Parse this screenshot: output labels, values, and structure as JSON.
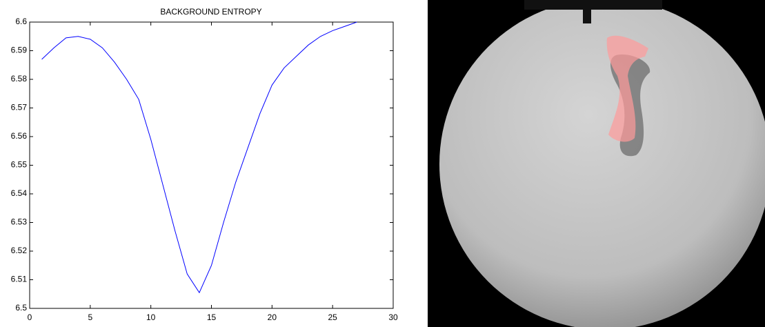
{
  "chart_data": {
    "type": "line",
    "title": "BACKGROUND ENTROPY",
    "x": [
      1,
      2,
      3,
      4,
      5,
      6,
      7,
      8,
      9,
      10,
      11,
      12,
      13,
      14,
      15,
      16,
      17,
      18,
      19,
      20,
      21,
      22,
      23,
      24,
      25,
      26,
      27
    ],
    "series": [
      {
        "color": "#0000ff",
        "values": [
          6.587,
          6.591,
          6.5945,
          6.595,
          6.594,
          6.591,
          6.586,
          6.58,
          6.573,
          6.559,
          6.543,
          6.527,
          6.512,
          6.5055,
          6.515,
          6.53,
          6.544,
          6.556,
          6.568,
          6.578,
          6.584,
          6.588,
          6.592,
          6.595,
          6.597,
          6.5985,
          6.6
        ]
      }
    ],
    "xlim": [
      0,
      30
    ],
    "xticks": [
      0,
      5,
      10,
      15,
      20,
      25,
      30
    ],
    "ylim": [
      6.5,
      6.6
    ],
    "yticks": [
      6.5,
      6.51,
      6.52,
      6.53,
      6.54,
      6.55,
      6.56,
      6.57,
      6.58,
      6.59,
      6.6
    ],
    "grid": false
  }
}
